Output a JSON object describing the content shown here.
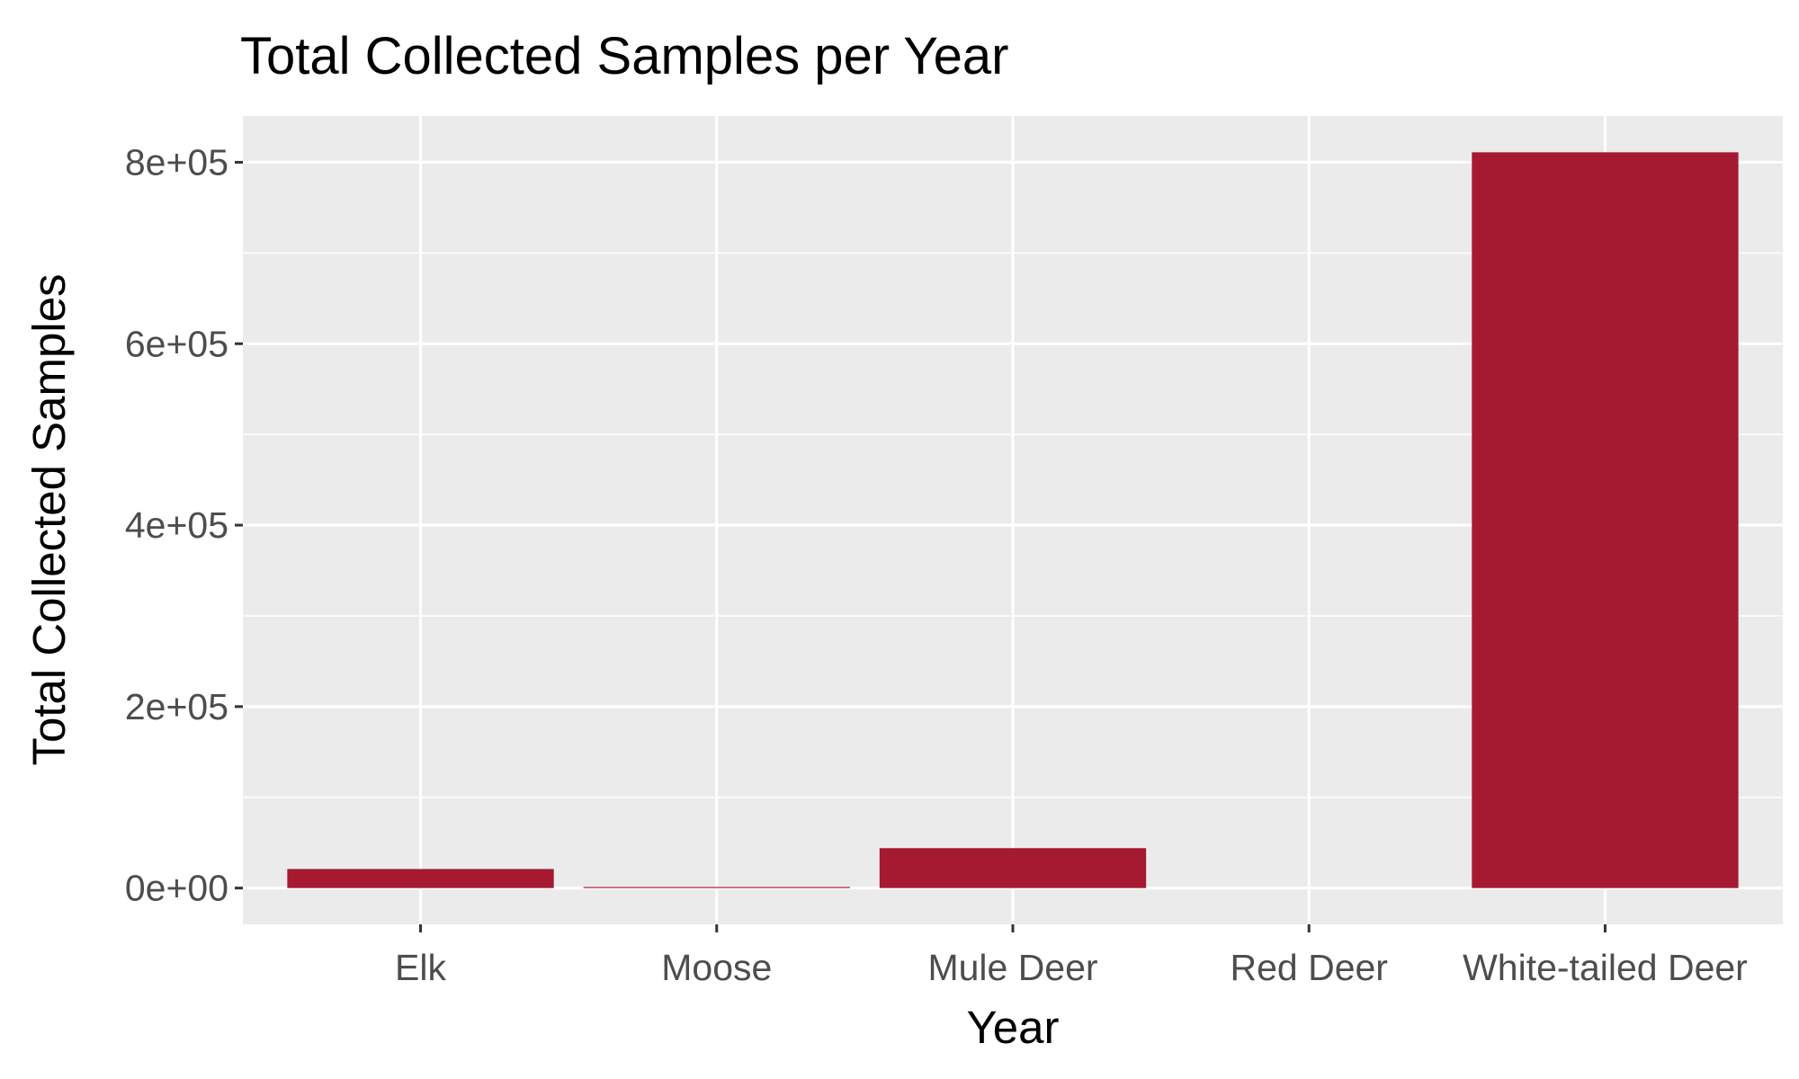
{
  "chart_data": {
    "type": "bar",
    "title": "Total Collected Samples per Year",
    "xlabel": "Year",
    "ylabel": "Total Collected Samples",
    "categories": [
      "Elk",
      "Moose",
      "Mule Deer",
      "Red Deer",
      "White-tailed Deer"
    ],
    "values": [
      21000,
      1200,
      44000,
      0,
      811000
    ],
    "ylim": [
      -40000,
      851000
    ],
    "y_ticks": [
      0,
      200000,
      400000,
      600000,
      800000
    ],
    "y_tick_labels": [
      "0e+00",
      "2e+05",
      "4e+05",
      "6e+05",
      "8e+05"
    ],
    "grid": true,
    "legend": "none",
    "colors": {
      "bar": "#A51931",
      "panel_background": "#EBEBEB",
      "grid": "#FFFFFF",
      "tick_text": "#4D4D4D",
      "title_text": "#000000"
    }
  }
}
